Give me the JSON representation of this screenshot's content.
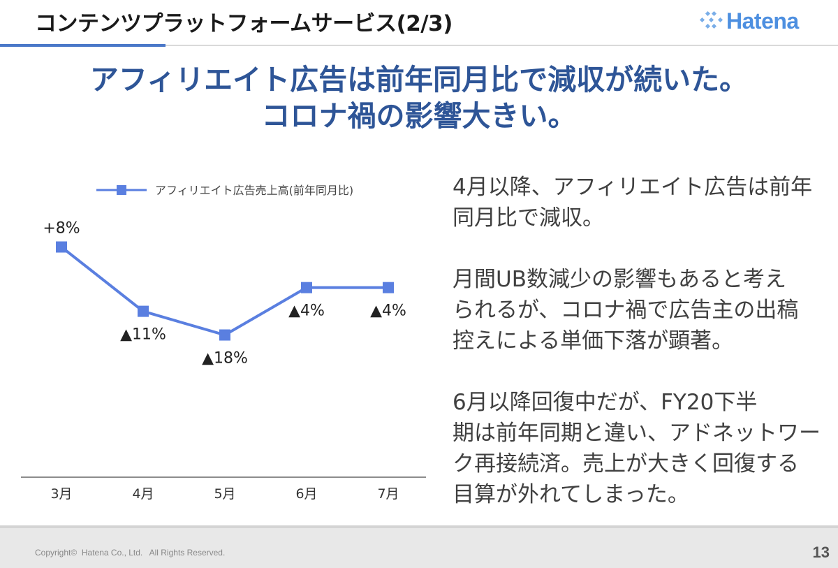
{
  "header": {
    "title": "コンテンツプラットフォームサービス(2/3)",
    "logo_text": "Hatena"
  },
  "headline": {
    "line1": "アフィリエイト広告は前年同月比で減収が続いた。",
    "line2": "コロナ禍の影響大きい。"
  },
  "chart_data": {
    "type": "line",
    "categories": [
      "3月",
      "4月",
      "5月",
      "6月",
      "7月"
    ],
    "series": [
      {
        "name": "アフィリエイト広告売上高(前年同月比)",
        "values": [
          8,
          -11,
          -18,
          -4,
          -4
        ],
        "labels": [
          "+8%",
          "▲11%",
          "▲18%",
          "▲4%",
          "▲4%"
        ]
      }
    ],
    "ylim": [
      -60,
      24
    ],
    "legend": "top",
    "grid": false,
    "color": "#5a7fe0"
  },
  "body": {
    "paragraphs": [
      "4月以降、アフィリエイト広告は前年\n同月比で減収。",
      "月間UB数減少の影響もあると考え\nられるが、コロナ禍で広告主の出稿\n控えによる単価下落が顕著。",
      "6月以降回復中だが、FY20下半\n期は前年同期と違い、アドネットワー\nク再接続済。売上が大きく回復する\n目算が外れてしまった。"
    ]
  },
  "footer": {
    "copyright": "Copyright©  Hatena Co., Ltd.   All Rights Reserved.",
    "page_number": "13"
  },
  "colors": {
    "accent": "#4a78c8",
    "headline": "#2e5597",
    "series": "#5a7fe0",
    "logo": "#4d8fe0"
  }
}
